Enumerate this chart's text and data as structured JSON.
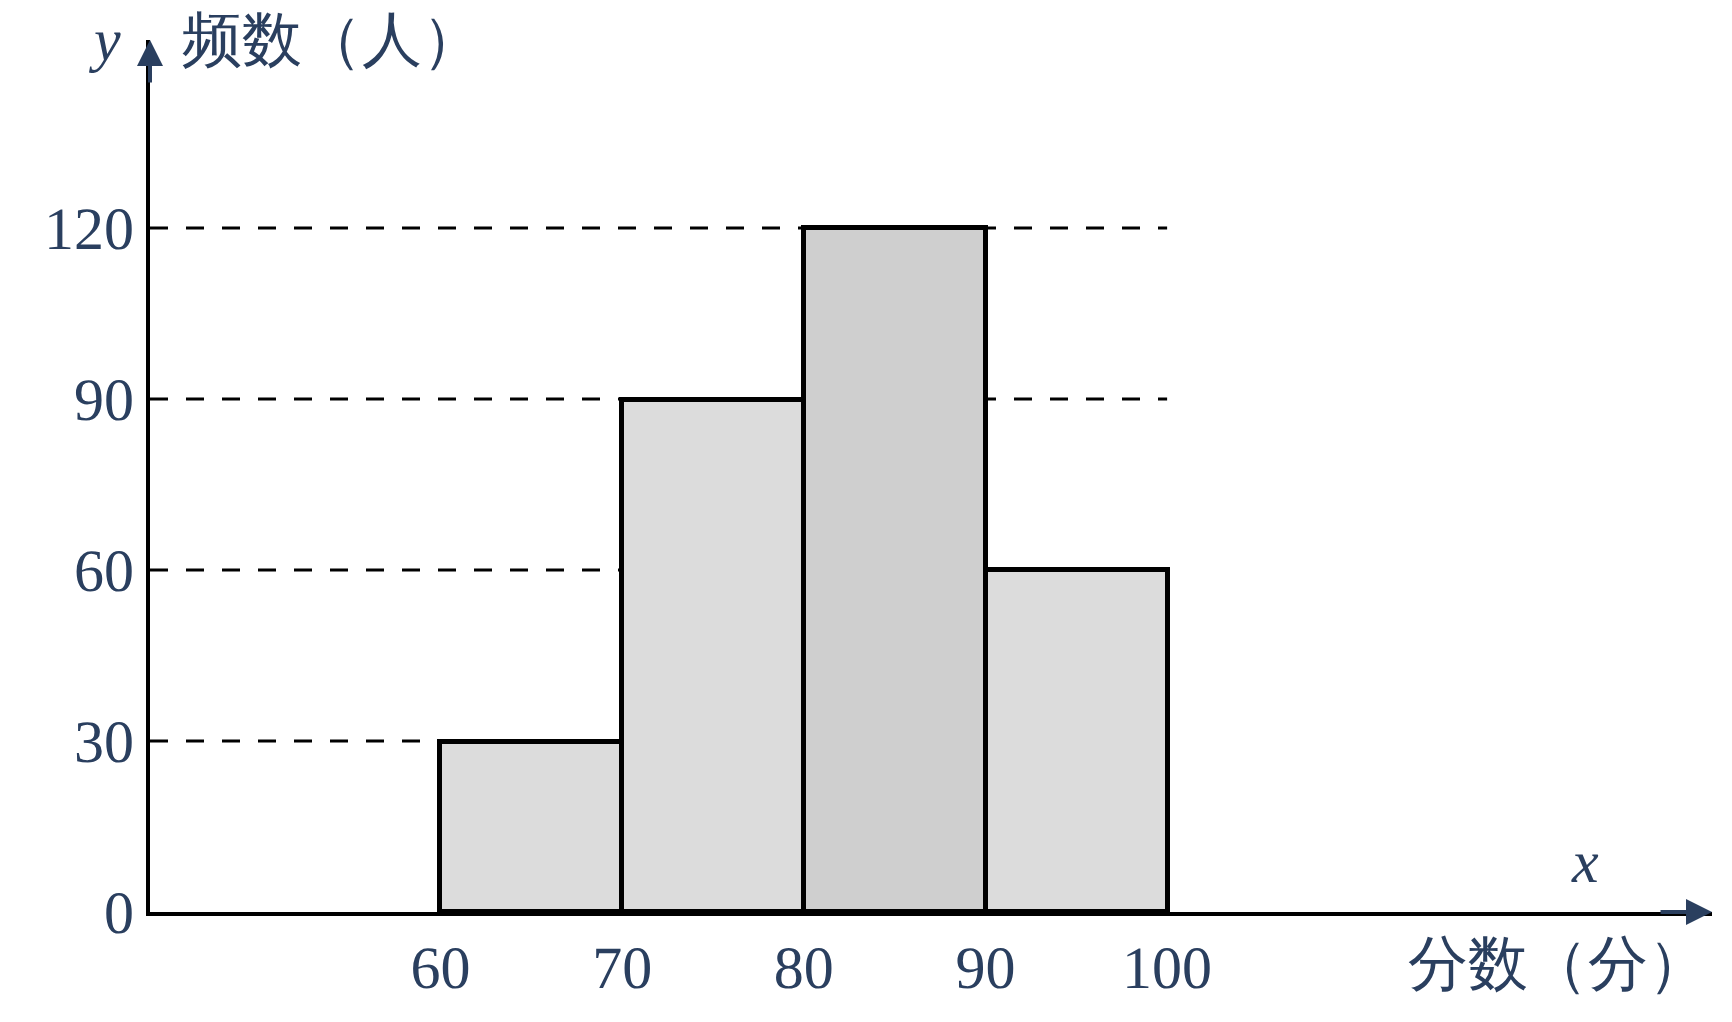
{
  "chart_data": {
    "type": "histogram",
    "xlabel": "分数（分）",
    "ylabel": "频数（人）",
    "bins": [
      60,
      70,
      80,
      90,
      100
    ],
    "values": [
      30,
      90,
      120,
      60
    ],
    "colors": [
      "#dcdcdc",
      "#dcdcdc",
      "#cfcfcf",
      "#dcdcdc"
    ],
    "xlim": [
      44,
      130
    ],
    "ylim": [
      0,
      153
    ],
    "xticks": [
      60,
      70,
      80,
      90,
      100
    ],
    "yticks": [
      0,
      30,
      60,
      90,
      120
    ],
    "ref_lines": [
      {
        "axis": "y",
        "value": 30,
        "line_style": "dashed",
        "color": "#000000"
      },
      {
        "axis": "y",
        "value": 60,
        "line_style": "dashed",
        "color": "#000000"
      },
      {
        "axis": "y",
        "value": 90,
        "line_style": "dashed",
        "color": "#000000"
      },
      {
        "axis": "y",
        "value": 120,
        "line_style": "dashed",
        "color": "#000000"
      }
    ],
    "annotations": [
      "y",
      "x"
    ]
  }
}
